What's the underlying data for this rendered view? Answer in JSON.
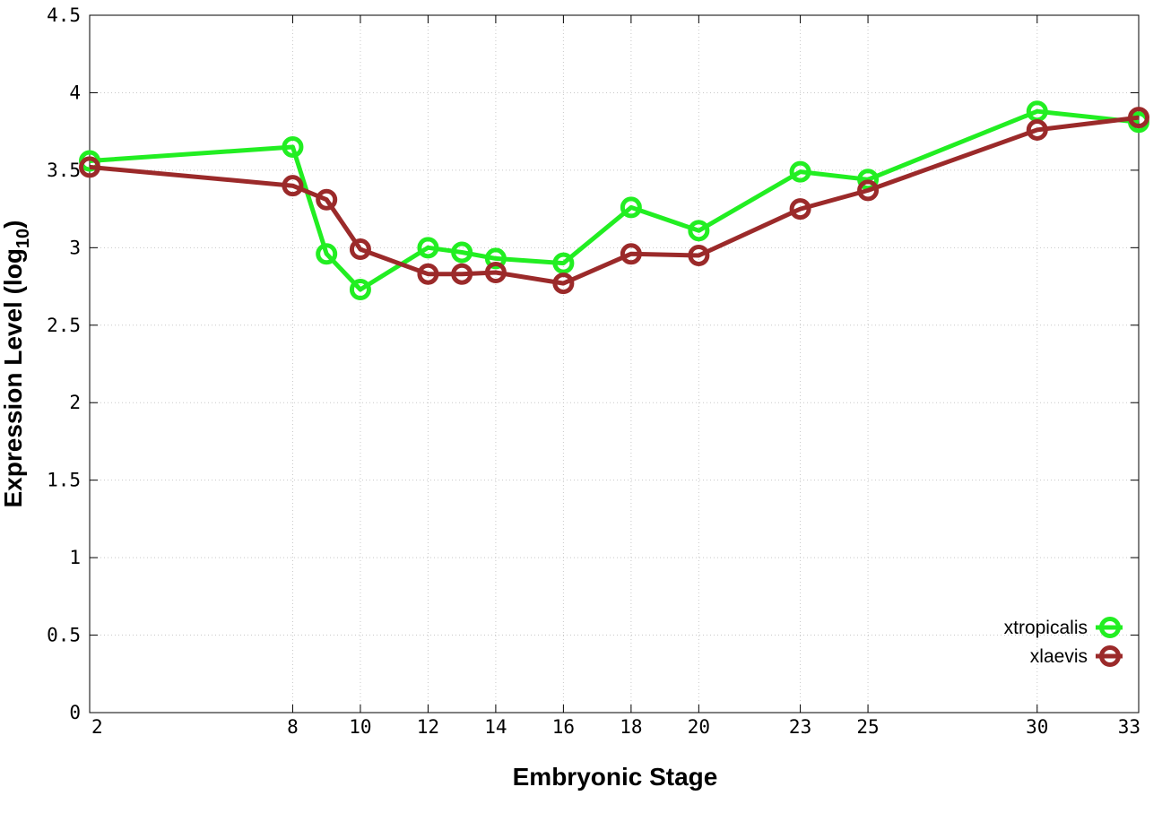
{
  "chart_data": {
    "type": "line",
    "xlabel": "Embryonic Stage",
    "ylabel": "Expression Level (log",
    "ylabel_sub": "10",
    "ylabel_end": ")",
    "x": [
      2,
      8,
      9,
      10,
      12,
      13,
      14,
      16,
      18,
      20,
      23,
      25,
      30,
      33
    ],
    "xticks": [
      2,
      8,
      10,
      12,
      14,
      16,
      18,
      20,
      23,
      25,
      30,
      33
    ],
    "xtick_labels": [
      "2",
      "8",
      "10",
      "12",
      "14",
      "16",
      "18",
      "20",
      "23",
      "25",
      "30",
      "33"
    ],
    "yticks": [
      0,
      0.5,
      1,
      1.5,
      2,
      2.5,
      3,
      3.5,
      4,
      4.5
    ],
    "ytick_labels": [
      "0",
      "0.5",
      "1",
      "1.5",
      "2",
      "2.5",
      "3",
      "3.5",
      "4",
      "4.5"
    ],
    "xlim": [
      2,
      33
    ],
    "ylim": [
      0,
      4.5
    ],
    "grid": true,
    "legend_position": "bottom-right",
    "series": [
      {
        "name": "xtropicalis",
        "color": "#22ee22",
        "values": [
          3.56,
          3.65,
          2.96,
          2.73,
          3.0,
          2.97,
          2.93,
          2.9,
          3.26,
          3.11,
          3.49,
          3.44,
          3.88,
          3.81
        ]
      },
      {
        "name": "xlaevis",
        "color": "#9b2a2a",
        "values": [
          3.52,
          3.4,
          3.31,
          2.99,
          2.83,
          2.83,
          2.84,
          2.77,
          2.96,
          2.95,
          3.25,
          3.37,
          3.76,
          3.84
        ]
      }
    ]
  }
}
